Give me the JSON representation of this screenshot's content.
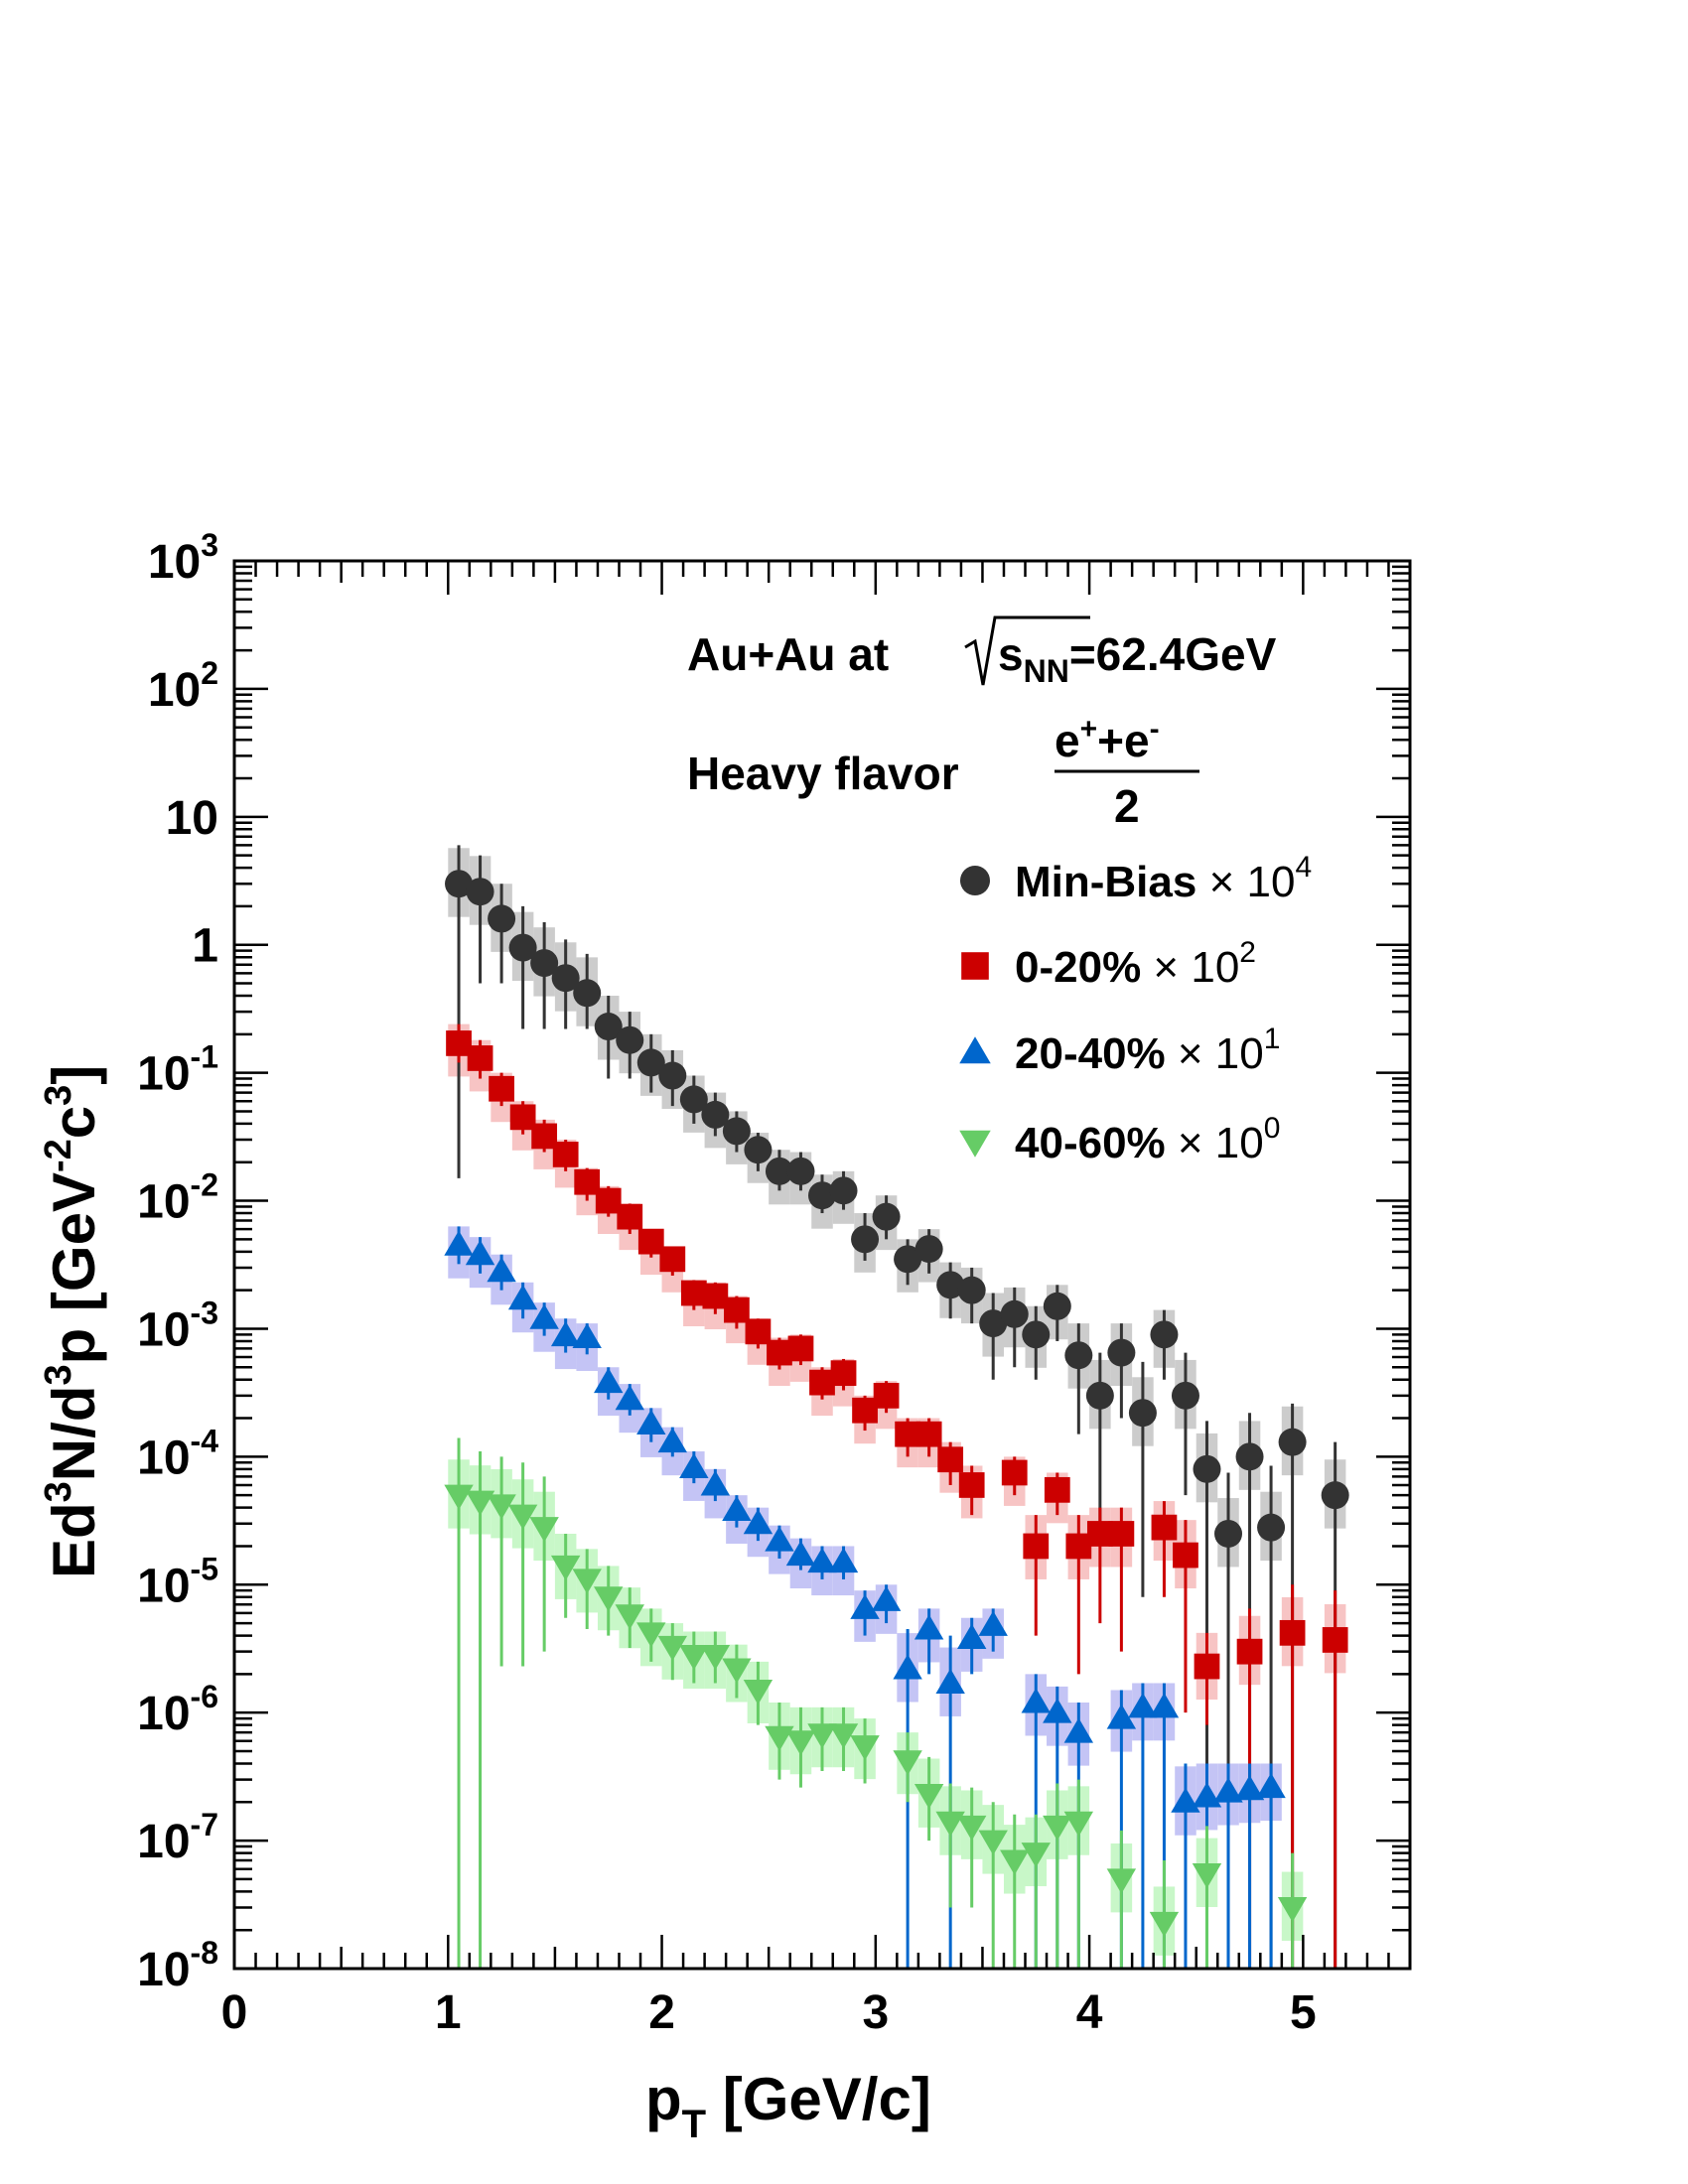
{
  "chart_data": {
    "type": "scatter",
    "xlabel": {
      "main": "p",
      "sub": "T",
      "rest": " [GeV/c]"
    },
    "ylabel": {
      "parts": [
        "Ed",
        "3",
        "N/d",
        "3",
        "p [GeV",
        "-2",
        "c",
        "3",
        "]"
      ]
    },
    "xlim": [
      0,
      5.5
    ],
    "ylim": [
      1e-08,
      1000
    ],
    "yscale": "log",
    "x_ticks": [
      "0",
      "1",
      "2",
      "3",
      "4",
      "5"
    ],
    "y_ticks": [
      {
        "base": "10",
        "exp": "3"
      },
      {
        "base": "10",
        "exp": "2"
      },
      {
        "base": "10",
        "exp": ""
      },
      {
        "base": "1",
        "exp": ""
      },
      {
        "base": "10",
        "exp": "-1"
      },
      {
        "base": "10",
        "exp": "-2"
      },
      {
        "base": "10",
        "exp": "-3"
      },
      {
        "base": "10",
        "exp": "-4"
      },
      {
        "base": "10",
        "exp": "-5"
      },
      {
        "base": "10",
        "exp": "-6"
      },
      {
        "base": "10",
        "exp": "-7"
      },
      {
        "base": "10",
        "exp": "-8"
      }
    ],
    "annotation": {
      "line1_prefix": "Au+Au at ",
      "line1_s": "s",
      "line1_sub": "NN",
      "line1_suffix": "=62.4GeV",
      "line2_prefix": "Heavy flavor ",
      "numerator_e1": "e",
      "numerator_sup1": "+",
      "numerator_plus": "+e",
      "numerator_sup2": "-",
      "denominator": "2"
    },
    "legend_position": "top-right",
    "series": [
      {
        "name": "Min-Bias",
        "scale_text": "× 10",
        "scale_exp": "4",
        "marker": "circle",
        "color": "#333333",
        "band_color": "#cccccc",
        "points": [
          [
            1.05,
            3.0,
            6.0,
            0.015
          ],
          [
            1.15,
            2.6,
            5.0,
            0.5
          ],
          [
            1.25,
            1.6,
            3.0,
            0.5
          ],
          [
            1.35,
            0.95,
            2.0,
            0.22
          ],
          [
            1.45,
            0.72,
            1.5,
            0.22
          ],
          [
            1.55,
            0.55,
            1.1,
            0.22
          ],
          [
            1.65,
            0.42,
            0.85,
            0.22
          ],
          [
            1.75,
            0.23,
            0.4,
            0.09
          ],
          [
            1.85,
            0.18,
            0.3,
            0.09
          ],
          [
            1.95,
            0.12,
            0.2,
            0.07
          ],
          [
            2.05,
            0.095,
            0.15,
            0.055
          ],
          [
            2.15,
            0.062,
            0.095,
            0.04
          ],
          [
            2.25,
            0.047,
            0.07,
            0.032
          ],
          [
            2.35,
            0.035,
            0.05,
            0.024
          ],
          [
            2.45,
            0.025,
            0.034,
            0.017
          ],
          [
            2.55,
            0.017,
            0.025,
            0.012
          ],
          [
            2.65,
            0.017,
            0.024,
            0.012
          ],
          [
            2.75,
            0.011,
            0.016,
            0.008
          ],
          [
            2.85,
            0.012,
            0.017,
            0.0085
          ],
          [
            2.95,
            0.005,
            0.008,
            0.0034
          ],
          [
            3.05,
            0.0075,
            0.011,
            0.005
          ],
          [
            3.15,
            0.0035,
            0.005,
            0.0022
          ],
          [
            3.25,
            0.0042,
            0.006,
            0.0027
          ],
          [
            3.35,
            0.0022,
            0.0033,
            0.0012
          ],
          [
            3.45,
            0.002,
            0.003,
            0.0011
          ],
          [
            3.55,
            0.0011,
            0.0019,
            0.0004
          ],
          [
            3.65,
            0.0013,
            0.0021,
            0.0005
          ],
          [
            3.75,
            0.0009,
            0.0015,
            0.0004
          ],
          [
            3.85,
            0.0015,
            0.0022,
            0.0008
          ],
          [
            3.95,
            0.00062,
            0.0011,
            0.00015
          ],
          [
            4.05,
            0.0003,
            0.00065,
            3e-05
          ],
          [
            4.15,
            0.00065,
            0.0011,
            0.0002
          ],
          [
            4.25,
            0.00022,
            0.00055,
            8e-06
          ],
          [
            4.35,
            0.0009,
            0.0014,
            0.0004
          ],
          [
            4.45,
            0.0003,
            0.00065,
            5e-05
          ],
          [
            4.55,
            8e-05,
            0.00019,
            1e-08
          ],
          [
            4.65,
            2.5e-05,
            7.5e-05,
            1e-08
          ],
          [
            4.75,
            0.0001,
            0.00022,
            1e-08
          ],
          [
            4.85,
            2.8e-05,
            8.5e-05,
            1e-08
          ],
          [
            4.95,
            0.00013,
            0.00026,
            1e-08
          ],
          [
            5.15,
            5e-05,
            0.00013,
            1e-08
          ]
        ]
      },
      {
        "name": "0-20%",
        "scale_text": "× 10",
        "scale_exp": "2",
        "marker": "square",
        "color": "#cc0000",
        "band_color": "#f7c4c4",
        "points": [
          [
            1.05,
            0.17,
            0.24,
            0.12
          ],
          [
            1.15,
            0.13,
            0.18,
            0.09
          ],
          [
            1.25,
            0.075,
            0.1,
            0.055
          ],
          [
            1.35,
            0.045,
            0.06,
            0.033
          ],
          [
            1.45,
            0.032,
            0.043,
            0.024
          ],
          [
            1.55,
            0.023,
            0.03,
            0.017
          ],
          [
            1.65,
            0.014,
            0.018,
            0.01
          ],
          [
            1.75,
            0.01,
            0.013,
            0.0075
          ],
          [
            1.85,
            0.0075,
            0.0095,
            0.0055
          ],
          [
            1.95,
            0.0048,
            0.006,
            0.0036
          ],
          [
            2.05,
            0.0035,
            0.0044,
            0.0026
          ],
          [
            2.15,
            0.0019,
            0.0024,
            0.0014
          ],
          [
            2.25,
            0.0018,
            0.0023,
            0.0013
          ],
          [
            2.35,
            0.0014,
            0.0018,
            0.001
          ],
          [
            2.45,
            0.00095,
            0.0012,
            0.0007
          ],
          [
            2.55,
            0.00065,
            0.00085,
            0.00048
          ],
          [
            2.65,
            0.0007,
            0.0009,
            0.00052
          ],
          [
            2.75,
            0.00038,
            0.0005,
            0.00028
          ],
          [
            2.85,
            0.00045,
            0.00058,
            0.00033
          ],
          [
            2.95,
            0.00023,
            0.0003,
            0.00016
          ],
          [
            3.05,
            0.0003,
            0.00039,
            0.00022
          ],
          [
            3.15,
            0.00015,
            0.0002,
            0.0001
          ],
          [
            3.25,
            0.00015,
            0.0002,
            0.0001
          ],
          [
            3.35,
            9.5e-05,
            0.00013,
            6e-05
          ],
          [
            3.45,
            6e-05,
            8.5e-05,
            3.5e-05
          ],
          [
            3.65,
            7.5e-05,
            0.0001,
            5e-05
          ],
          [
            3.75,
            2e-05,
            3.5e-05,
            4e-06
          ],
          [
            3.85,
            5.5e-05,
            7.5e-05,
            3.5e-05
          ],
          [
            3.95,
            2e-05,
            3.5e-05,
            2e-06
          ],
          [
            4.05,
            2.5e-05,
            4e-05,
            5e-06
          ],
          [
            4.15,
            2.5e-05,
            4e-05,
            3e-06
          ],
          [
            4.35,
            2.8e-05,
            4.5e-05,
            8e-06
          ],
          [
            4.45,
            1.7e-05,
            3.2e-05,
            1e-06
          ],
          [
            4.55,
            2.3e-06,
            4.2e-06,
            8e-07
          ],
          [
            4.75,
            3e-06,
            6.5e-06,
            1e-08
          ],
          [
            4.95,
            4.2e-06,
            1e-05,
            1e-08
          ],
          [
            5.15,
            3.7e-06,
            9e-06,
            1e-08
          ]
        ]
      },
      {
        "name": "20-40%",
        "scale_text": "× 10",
        "scale_exp": "1",
        "marker": "triangle-up",
        "color": "#0066cc",
        "band_color": "#c4c4f5",
        "points": [
          [
            1.05,
            0.0045,
            0.0063,
            0.0032
          ],
          [
            1.15,
            0.0038,
            0.0052,
            0.0027
          ],
          [
            1.25,
            0.0028,
            0.0038,
            0.002
          ],
          [
            1.35,
            0.0017,
            0.0023,
            0.0012
          ],
          [
            1.45,
            0.0012,
            0.0016,
            0.00088
          ],
          [
            1.55,
            0.00088,
            0.0012,
            0.00065
          ],
          [
            1.65,
            0.00085,
            0.0011,
            0.00063
          ],
          [
            1.75,
            0.00038,
            0.0005,
            0.00028
          ],
          [
            1.85,
            0.00028,
            0.00037,
            0.00021
          ],
          [
            1.95,
            0.00018,
            0.00024,
            0.00013
          ],
          [
            2.05,
            0.00013,
            0.00017,
            0.0001
          ],
          [
            2.15,
            8.2e-05,
            0.00011,
            6.2e-05
          ],
          [
            2.25,
            6e-05,
            8e-05,
            4.5e-05
          ],
          [
            2.35,
            3.8e-05,
            5e-05,
            2.8e-05
          ],
          [
            2.45,
            3e-05,
            4e-05,
            2.2e-05
          ],
          [
            2.55,
            2.2e-05,
            2.9e-05,
            1.6e-05
          ],
          [
            2.65,
            1.7e-05,
            2.3e-05,
            1.3e-05
          ],
          [
            2.75,
            1.5e-05,
            2e-05,
            1.1e-05
          ],
          [
            2.85,
            1.5e-05,
            2e-05,
            1.1e-05
          ],
          [
            2.95,
            6.5e-06,
            9e-06,
            4e-06
          ],
          [
            3.05,
            7.5e-06,
            1e-05,
            5e-06
          ],
          [
            3.15,
            2.2e-06,
            4.5e-06,
            1e-08
          ],
          [
            3.25,
            4.5e-06,
            6.5e-06,
            2e-06
          ],
          [
            3.35,
            1.7e-06,
            4e-06,
            1e-08
          ],
          [
            3.45,
            3.8e-06,
            5.5e-06,
            2e-06
          ],
          [
            3.55,
            4.8e-06,
            6.5e-06,
            3e-06
          ],
          [
            3.75,
            1.2e-06,
            2e-06,
            1e-08
          ],
          [
            3.85,
            1e-06,
            1.6e-06,
            1e-08
          ],
          [
            3.95,
            7e-07,
            1.2e-06,
            1e-08
          ],
          [
            4.15,
            9e-07,
            1.5e-06,
            1e-08
          ],
          [
            4.25,
            1.1e-06,
            1.7e-06,
            1e-08
          ],
          [
            4.35,
            1.1e-06,
            1.7e-06,
            1e-08
          ],
          [
            4.45,
            2e-07,
            4e-07,
            1e-08
          ],
          [
            4.55,
            2.2e-07,
            4e-07,
            1e-08
          ],
          [
            4.65,
            2.4e-07,
            4e-07,
            1e-08
          ],
          [
            4.75,
            2.5e-07,
            4e-07,
            1e-08
          ],
          [
            4.85,
            2.6e-07,
            4e-07,
            1e-08
          ]
        ]
      },
      {
        "name": "40-60%",
        "scale_text": "× 10",
        "scale_exp": "0",
        "marker": "triangle-down",
        "color": "#66cc66",
        "band_color": "#c8f7c8",
        "points": [
          [
            1.05,
            5e-05,
            0.00014,
            1e-08
          ],
          [
            1.15,
            4.5e-05,
            0.00011,
            1e-08
          ],
          [
            1.25,
            4.2e-05,
            0.0001,
            2.3e-06
          ],
          [
            1.35,
            3.5e-05,
            9e-05,
            2.3e-06
          ],
          [
            1.45,
            2.8e-05,
            7e-05,
            3e-06
          ],
          [
            1.55,
            1.4e-05,
            2.5e-05,
            5.5e-06
          ],
          [
            1.65,
            1.1e-05,
            1.9e-05,
            4.5e-06
          ],
          [
            1.75,
            8e-06,
            1.4e-05,
            4e-06
          ],
          [
            1.85,
            5.8e-06,
            9.5e-06,
            3.2e-06
          ],
          [
            1.95,
            4.2e-06,
            6.5e-06,
            2.5e-06
          ],
          [
            2.05,
            3.3e-06,
            5e-06,
            1.8e-06
          ],
          [
            2.15,
            2.8e-06,
            4.3e-06,
            1.7e-06
          ],
          [
            2.25,
            2.8e-06,
            4.3e-06,
            1.7e-06
          ],
          [
            2.35,
            2.2e-06,
            3.4e-06,
            1.3e-06
          ],
          [
            2.45,
            1.5e-06,
            2.5e-06,
            8e-07
          ],
          [
            2.55,
            6.5e-07,
            1.2e-06,
            3e-07
          ],
          [
            2.65,
            6e-07,
            1.1e-06,
            2.6e-07
          ],
          [
            2.75,
            6.8e-07,
            1.1e-06,
            3.5e-07
          ],
          [
            2.85,
            6.8e-07,
            1.1e-06,
            3.5e-07
          ],
          [
            2.95,
            5.5e-07,
            9e-07,
            2.8e-07
          ],
          [
            3.15,
            4.2e-07,
            7e-07,
            2e-07
          ],
          [
            3.25,
            2.3e-07,
            4.5e-07,
            1e-07
          ],
          [
            3.35,
            1.4e-07,
            2.8e-07,
            3e-08
          ],
          [
            3.45,
            1.3e-07,
            2.6e-07,
            3e-08
          ],
          [
            3.55,
            1e-07,
            2e-07,
            1e-08
          ],
          [
            3.65,
            7e-08,
            1.6e-07,
            1e-08
          ],
          [
            3.75,
            8e-08,
            1.6e-07,
            1e-08
          ],
          [
            3.85,
            1.3e-07,
            2.8e-07,
            1e-08
          ],
          [
            3.95,
            1.4e-07,
            3e-07,
            1e-08
          ],
          [
            4.15,
            5e-08,
            1.2e-07,
            1e-08
          ],
          [
            4.35,
            2.3e-08,
            7e-08,
            1e-08
          ],
          [
            4.55,
            5.5e-08,
            1.3e-07,
            1e-08
          ],
          [
            4.95,
            3e-08,
            8e-08,
            1e-08
          ]
        ]
      }
    ]
  }
}
